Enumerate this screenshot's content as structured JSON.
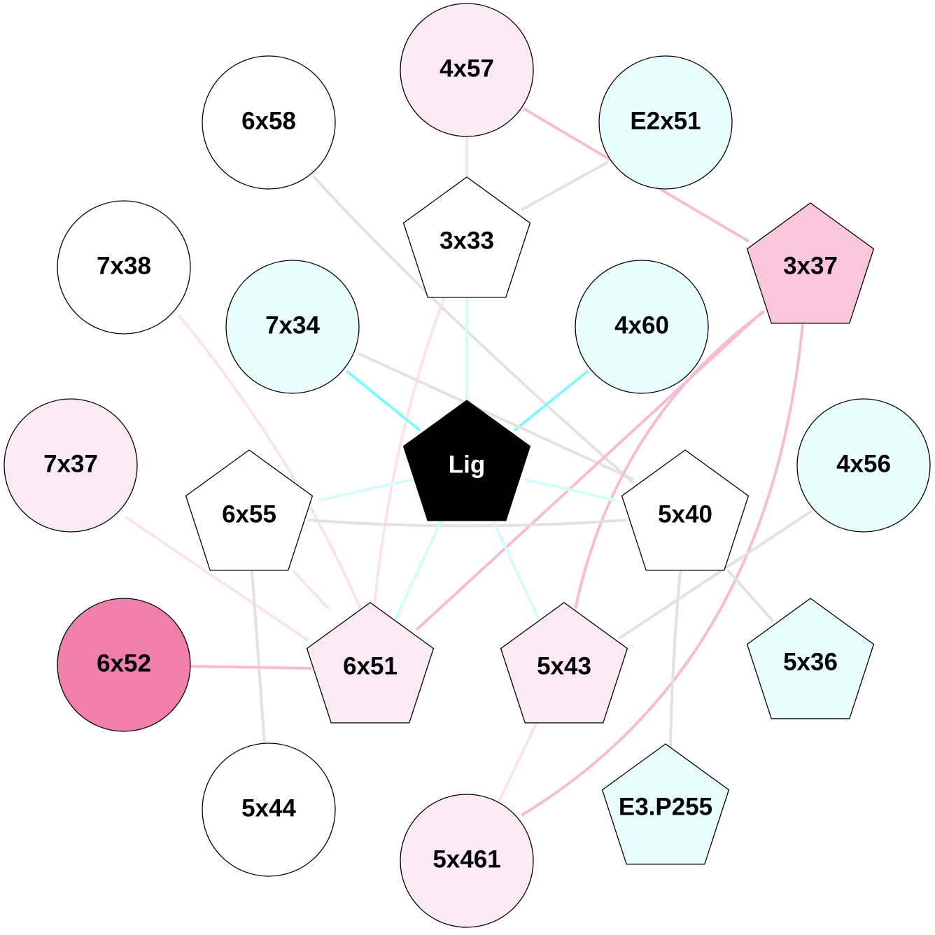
{
  "nodes": [
    {
      "label": "4x57"
    },
    {
      "label": "6x58"
    },
    {
      "label": "E2x51"
    },
    {
      "label": "7x38"
    },
    {
      "label": "7x34"
    },
    {
      "label": "4x60"
    },
    {
      "label": "7x37"
    },
    {
      "label": "4x56"
    },
    {
      "label": "6x52"
    },
    {
      "label": "5x44"
    },
    {
      "label": "5x461"
    },
    {
      "label": "3x33"
    },
    {
      "label": "3x37"
    },
    {
      "label": "Lig"
    },
    {
      "label": "6x55"
    },
    {
      "label": "5x40"
    },
    {
      "label": "6x51"
    },
    {
      "label": "5x43"
    },
    {
      "label": "5x36"
    },
    {
      "label": "E3.P255"
    }
  ]
}
